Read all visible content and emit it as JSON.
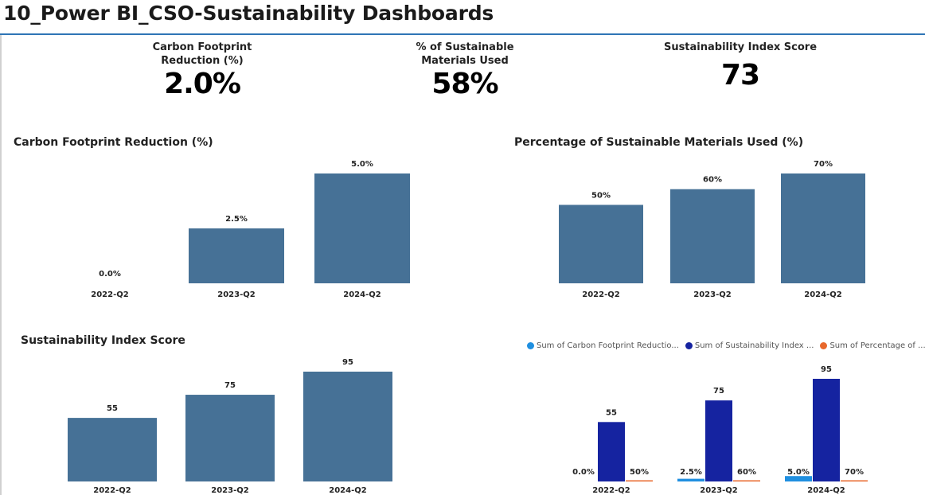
{
  "title": "10_Power BI_CSO-Sustainability Dashboards",
  "kpis": [
    {
      "label": "Carbon Footprint\nReduction (%)",
      "value": "2.0%"
    },
    {
      "label": "% of Sustainable\nMaterials Used",
      "value": "58%"
    },
    {
      "label": "Sustainability Index Score",
      "value": "73"
    }
  ],
  "colors": {
    "bar": "#467196",
    "series_carbon": "#1f8fe0",
    "series_index": "#1523a0",
    "series_materials": "#e8682c",
    "header_rule": "#2e75b6"
  },
  "chart_data": [
    {
      "type": "bar",
      "title": "Carbon Footprint Reduction (%)",
      "categories": [
        "2022-Q2",
        "2023-Q2",
        "2024-Q2"
      ],
      "values": [
        0.0,
        2.5,
        5.0
      ],
      "data_labels": [
        "0.0%",
        "2.5%",
        "5.0%"
      ],
      "ylim": [
        0,
        5
      ]
    },
    {
      "type": "bar",
      "title": "Percentage of Sustainable Materials Used (%)",
      "categories": [
        "2022-Q2",
        "2023-Q2",
        "2024-Q2"
      ],
      "values": [
        50,
        60,
        70
      ],
      "data_labels": [
        "50%",
        "60%",
        "70%"
      ],
      "ylim": [
        0,
        70
      ]
    },
    {
      "type": "bar",
      "title": "Sustainability Index Score",
      "categories": [
        "2022-Q2",
        "2023-Q2",
        "2024-Q2"
      ],
      "values": [
        55,
        75,
        95
      ],
      "data_labels": [
        "55",
        "75",
        "95"
      ],
      "ylim": [
        0,
        95
      ]
    },
    {
      "type": "bar",
      "title": "",
      "categories": [
        "2022-Q2",
        "2023-Q2",
        "2024-Q2"
      ],
      "series": [
        {
          "name": "Sum of Carbon Footprint Reductio...",
          "values": [
            0.0,
            2.5,
            5.0
          ],
          "data_labels": [
            "0.0%",
            "2.5%",
            "5.0%"
          ]
        },
        {
          "name": "Sum of Sustainability Index ...",
          "values": [
            55,
            75,
            95
          ],
          "data_labels": [
            "55",
            "75",
            "95"
          ]
        },
        {
          "name": "Sum of Percentage of ...",
          "values": [
            0.5,
            0.6,
            0.7
          ],
          "data_labels": [
            "50%",
            "60%",
            "70%"
          ]
        }
      ],
      "ylim": [
        0,
        95
      ],
      "legend": "top"
    }
  ]
}
